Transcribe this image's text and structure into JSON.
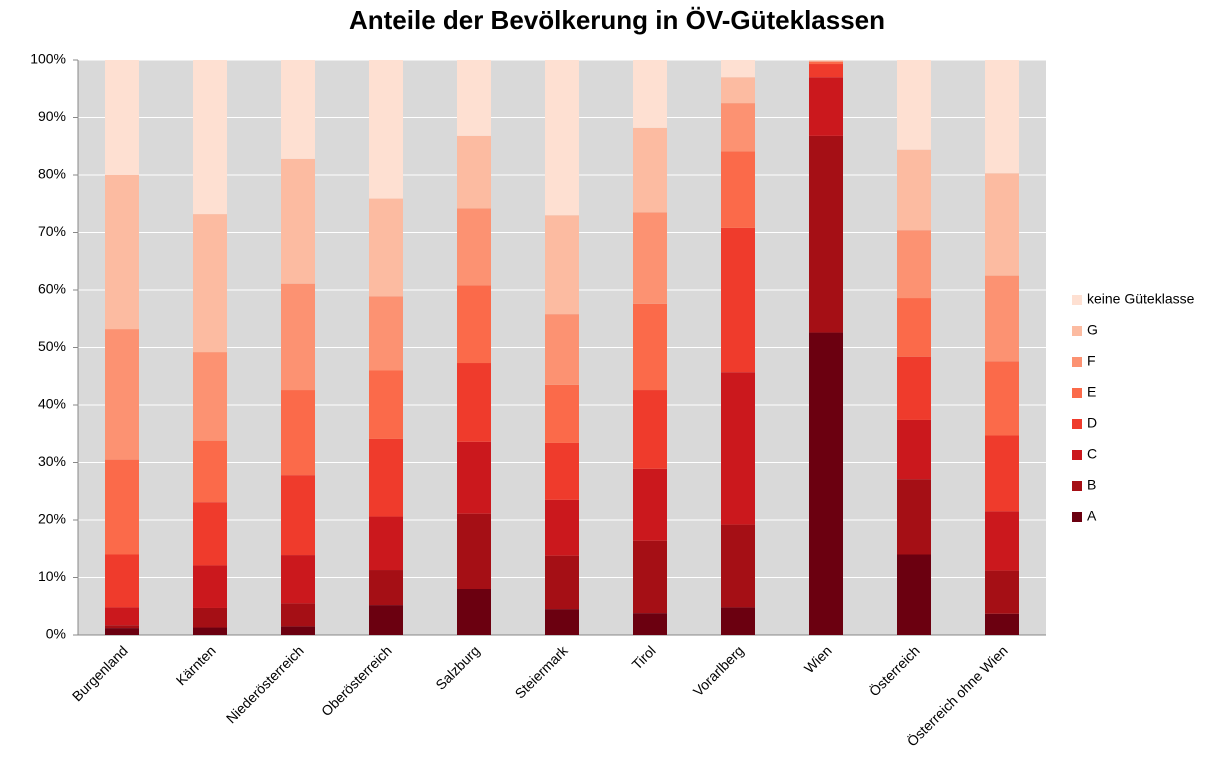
{
  "chart_data": {
    "type": "stacked_bar",
    "title": "Anteile der Bevölkerung in ÖV-Güteklassen",
    "categories": [
      "Burgenland",
      "Kärnten",
      "Niederösterreich",
      "Oberösterreich",
      "Salzburg",
      "Steiermark",
      "Tirol",
      "Vorarlberg",
      "Wien",
      "Österreich",
      "Österreich ohne Wien"
    ],
    "series": [
      {
        "name": "A",
        "color": "#6b0010",
        "values": [
          1.2,
          1.3,
          1.5,
          5.2,
          8.0,
          4.5,
          3.8,
          4.8,
          52.6,
          14.0,
          3.7
        ]
      },
      {
        "name": "B",
        "color": "#a50f15",
        "values": [
          0.5,
          3.4,
          4.0,
          6.1,
          13.1,
          9.3,
          12.6,
          14.4,
          34.2,
          13.1,
          7.5
        ]
      },
      {
        "name": "C",
        "color": "#cb181d",
        "values": [
          3.1,
          7.4,
          8.4,
          9.3,
          12.5,
          9.7,
          12.5,
          26.5,
          10.2,
          10.3,
          10.3
        ]
      },
      {
        "name": "D",
        "color": "#ef3b2c",
        "values": [
          9.2,
          11.0,
          13.9,
          13.5,
          13.7,
          9.9,
          13.7,
          25.1,
          2.3,
          11.0,
          13.2
        ]
      },
      {
        "name": "E",
        "color": "#fb6a4a",
        "values": [
          16.5,
          10.7,
          14.8,
          11.9,
          13.5,
          10.1,
          15.0,
          13.3,
          0.4,
          10.2,
          12.9
        ]
      },
      {
        "name": "F",
        "color": "#fc9272",
        "values": [
          22.7,
          15.4,
          18.5,
          12.9,
          13.4,
          12.3,
          15.9,
          8.4,
          0.1,
          11.8,
          14.9
        ]
      },
      {
        "name": "G",
        "color": "#fcbba1",
        "values": [
          26.8,
          24.0,
          21.7,
          17.0,
          12.6,
          17.2,
          14.7,
          4.5,
          0.1,
          14.0,
          17.8
        ]
      },
      {
        "name": "keine Güteklasse",
        "color": "#fee0d2",
        "values": [
          20.0,
          26.8,
          17.2,
          24.1,
          13.2,
          27.0,
          11.8,
          3.0,
          0.1,
          15.6,
          19.7
        ]
      }
    ],
    "ylim": [
      0,
      100
    ],
    "yticks": [
      {
        "value": 0,
        "label": "0%"
      },
      {
        "value": 10,
        "label": "10%"
      },
      {
        "value": 20,
        "label": "20%"
      },
      {
        "value": 30,
        "label": "30%"
      },
      {
        "value": 40,
        "label": "40%"
      },
      {
        "value": 50,
        "label": "50%"
      },
      {
        "value": 60,
        "label": "60%"
      },
      {
        "value": 70,
        "label": "70%"
      },
      {
        "value": 80,
        "label": "80%"
      },
      {
        "value": 90,
        "label": "90%"
      },
      {
        "value": 100,
        "label": "100%"
      }
    ],
    "grid": true,
    "legend": "right"
  }
}
